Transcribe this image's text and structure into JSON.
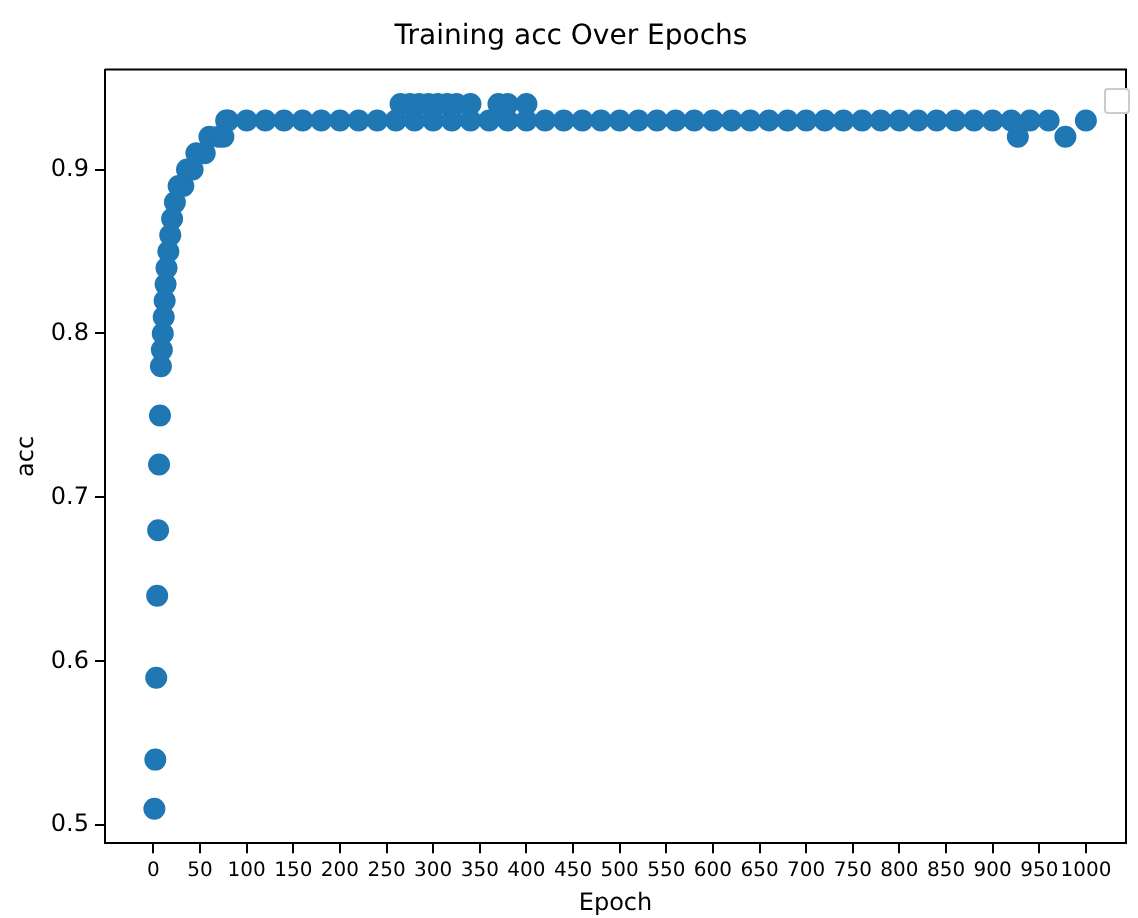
{
  "chart_data": {
    "type": "scatter",
    "title": "Training acc Over Epochs",
    "xlabel": "Epoch",
    "ylabel": "acc",
    "xlim": [
      -52,
      1043
    ],
    "xticks": [
      0,
      50,
      100,
      150,
      200,
      250,
      300,
      350,
      400,
      450,
      500,
      550,
      600,
      650,
      700,
      750,
      800,
      850,
      900,
      950,
      1000
    ],
    "ylim": [
      0.489,
      0.961
    ],
    "yticks": [
      0.5,
      0.6,
      0.7,
      0.8,
      0.9
    ],
    "grid": false,
    "marker": "circle",
    "series": [
      {
        "color": "#1f77b4",
        "x": [
          1,
          2,
          3,
          4,
          5,
          6,
          7,
          8,
          9,
          10,
          11,
          12,
          13,
          14,
          16,
          18,
          20,
          23,
          27,
          32,
          36,
          42,
          46,
          55,
          60,
          70,
          75,
          78,
          80,
          100,
          120,
          140,
          160,
          180,
          200,
          220,
          240,
          260,
          280,
          300,
          320,
          340,
          360,
          380,
          400,
          420,
          440,
          460,
          480,
          500,
          520,
          540,
          560,
          580,
          600,
          620,
          640,
          660,
          680,
          700,
          720,
          740,
          760,
          780,
          800,
          820,
          840,
          860,
          880,
          900,
          920,
          940,
          960,
          1000,
          265,
          275,
          285,
          295,
          305,
          315,
          325,
          340,
          370,
          380,
          400,
          927,
          978
        ],
        "values": [
          0.51,
          0.54,
          0.59,
          0.64,
          0.68,
          0.72,
          0.75,
          0.78,
          0.79,
          0.8,
          0.81,
          0.82,
          0.83,
          0.84,
          0.85,
          0.86,
          0.87,
          0.88,
          0.89,
          0.89,
          0.9,
          0.9,
          0.91,
          0.91,
          0.92,
          0.92,
          0.92,
          0.93,
          0.93,
          0.93,
          0.93,
          0.93,
          0.93,
          0.93,
          0.93,
          0.93,
          0.93,
          0.93,
          0.93,
          0.93,
          0.93,
          0.93,
          0.93,
          0.93,
          0.93,
          0.93,
          0.93,
          0.93,
          0.93,
          0.93,
          0.93,
          0.93,
          0.93,
          0.93,
          0.93,
          0.93,
          0.93,
          0.93,
          0.93,
          0.93,
          0.93,
          0.93,
          0.93,
          0.93,
          0.93,
          0.93,
          0.93,
          0.93,
          0.93,
          0.93,
          0.93,
          0.93,
          0.93,
          0.93,
          0.94,
          0.94,
          0.94,
          0.94,
          0.94,
          0.94,
          0.94,
          0.94,
          0.94,
          0.94,
          0.94,
          0.92,
          0.92
        ]
      }
    ]
  }
}
